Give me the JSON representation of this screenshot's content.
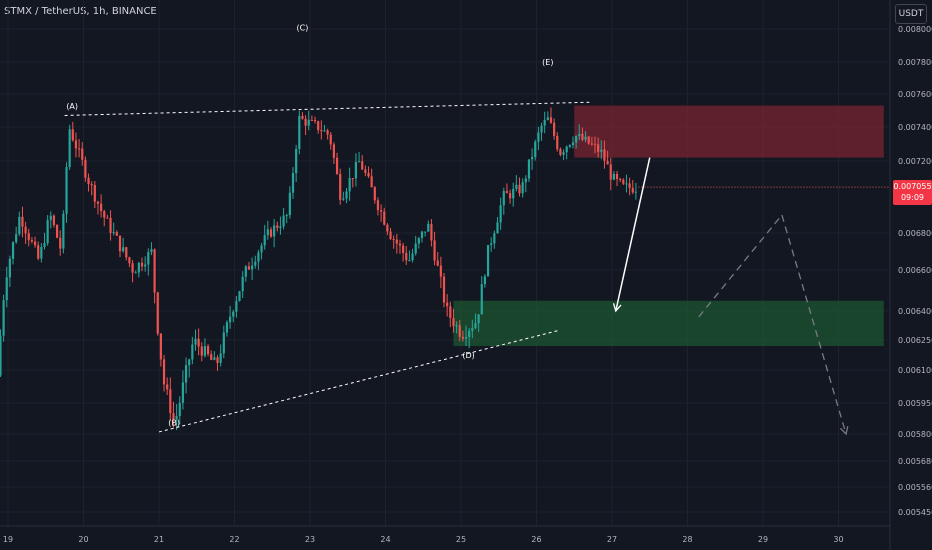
{
  "header": {
    "symbol": "STMX / TetherUS, 1h, BINANCE",
    "currency": "USDT"
  },
  "price_tag": {
    "price": "0.007055",
    "countdown": "09:09"
  },
  "colors": {
    "background": "#131722",
    "up": "#26a69a",
    "down": "#ef5350",
    "supply_zone": "#7a2431",
    "demand_zone": "#1e5631",
    "price_tag": "#f23645"
  },
  "chart_data": {
    "type": "candlestick",
    "y_axis": {
      "range": [
        0.0054,
        0.008
      ],
      "ticks": [
        "0.008000",
        "0.007800",
        "0.007600",
        "0.007400",
        "0.007200",
        "0.006800",
        "0.006600",
        "0.006400",
        "0.006250",
        "0.006100",
        "0.005950",
        "0.005800",
        "0.005680",
        "0.005560",
        "0.005450"
      ]
    },
    "x_axis": {
      "ticks": [
        "19",
        "20",
        "21",
        "22",
        "23",
        "24",
        "25",
        "26",
        "27",
        "28",
        "29",
        "30"
      ]
    },
    "wave_labels": [
      {
        "label": "(A)",
        "x": 19.85,
        "y": 0.00751
      },
      {
        "label": "(B)",
        "x": 21.2,
        "y": 0.00584
      },
      {
        "label": "(C)",
        "x": 22.9,
        "y": 0.00799
      },
      {
        "label": "(D)",
        "x": 25.1,
        "y": 0.00616
      },
      {
        "label": "(E)",
        "x": 26.15,
        "y": 0.00778
      }
    ],
    "trendlines": [
      {
        "style": "dashed",
        "from": [
          19.75,
          0.00747
        ],
        "to": [
          26.7,
          0.00755
        ]
      },
      {
        "style": "dashed",
        "from": [
          21.0,
          0.00581
        ],
        "to": [
          26.3,
          0.0063
        ]
      }
    ],
    "zones": [
      {
        "kind": "supply",
        "x_from": 26.5,
        "x_to": 30.6,
        "y_from": 0.00722,
        "y_to": 0.00753
      },
      {
        "kind": "demand",
        "x_from": 24.9,
        "x_to": 30.6,
        "y_from": 0.00622,
        "y_to": 0.00645
      }
    ],
    "projection": [
      {
        "style": "solid",
        "from": [
          27.5,
          0.00722
        ],
        "to": [
          27.05,
          0.0064
        ]
      },
      {
        "style": "dashed",
        "from": [
          28.15,
          0.00637
        ],
        "to": [
          29.25,
          0.0069
        ]
      },
      {
        "style": "dashed",
        "from": [
          29.25,
          0.0069
        ],
        "to": [
          30.1,
          0.0058
        ]
      }
    ],
    "last_price": 0.007055
  }
}
